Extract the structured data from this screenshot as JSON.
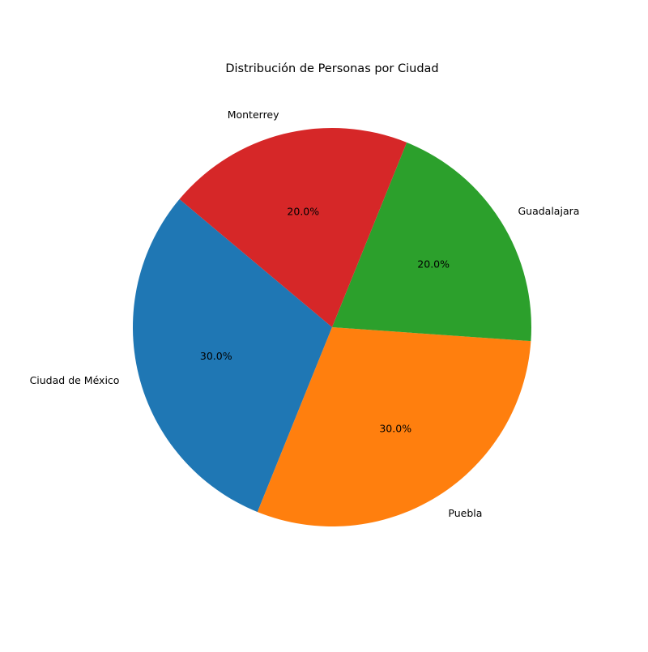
{
  "chart_data": {
    "type": "pie",
    "title": "Distribución de Personas por Ciudad",
    "categories": [
      "Ciudad de México",
      "Puebla",
      "Guadalajara",
      "Monterrey"
    ],
    "values": [
      30,
      30,
      20,
      20
    ],
    "percent_labels": [
      "30.0%",
      "30.0%",
      "20.0%",
      "20.0%"
    ],
    "colors": [
      "#1f77b4",
      "#ff7f0e",
      "#2ca02c",
      "#d62728"
    ],
    "start_angle_deg": 140,
    "direction": "counterclockwise"
  }
}
